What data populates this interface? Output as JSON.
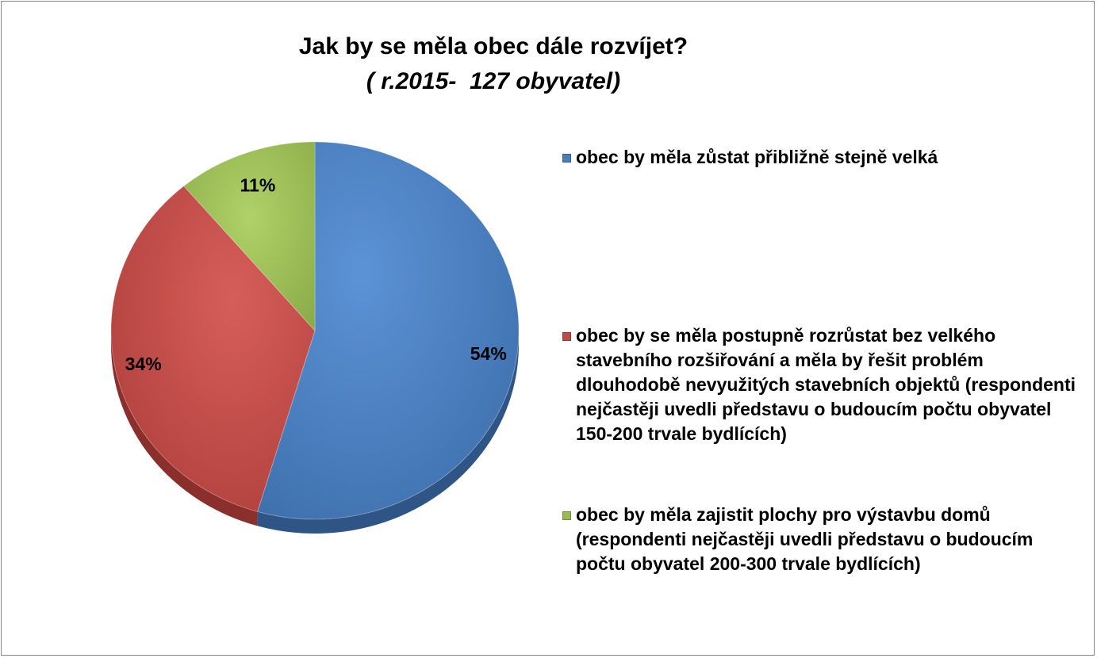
{
  "chart_data": {
    "type": "pie",
    "title": "Jak by se měla obec dále rozvíjet?",
    "subtitle": "( r.2015-  127 obyvatel)",
    "legend_position": "right",
    "slices": [
      {
        "label": "obec by měla zůstat přibližně stejně velká",
        "value": 54,
        "value_label": "54%",
        "color": "#4a7ebb"
      },
      {
        "label": "obec by se měla postupně rozrůstat bez velkého stavebního rozšiřování a měla by řešit problém dlouhodobě nevyužitých stavebních objektů (respondenti nejčastěji uvedli představu o budoucím počtu obyvatel 150-200 trvale bydlících)",
        "value": 34,
        "value_label": "34%",
        "color": "#be4b48"
      },
      {
        "label": "obec by měla zajistit plochy pro výstavbu domů (respondenti nejčastěji uvedli představu o budoucím počtu obyvatel 200-300 trvale bydlících)",
        "value": 11,
        "value_label": "11%",
        "color": "#98b954"
      }
    ]
  }
}
